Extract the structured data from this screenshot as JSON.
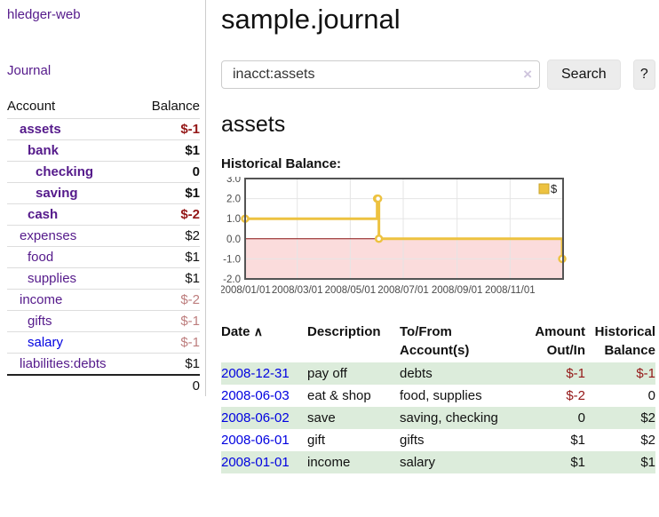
{
  "app": {
    "brand": "hledger-web"
  },
  "nav": {
    "journal": "Journal"
  },
  "sidebar": {
    "col_account": "Account",
    "col_balance": "Balance",
    "rows": [
      {
        "name": "assets",
        "balance": "$-1"
      },
      {
        "name": "bank",
        "balance": "$1"
      },
      {
        "name": "checking",
        "balance": "0"
      },
      {
        "name": "saving",
        "balance": "$1"
      },
      {
        "name": "cash",
        "balance": "$-2"
      },
      {
        "name": "expenses",
        "balance": "$2"
      },
      {
        "name": "food",
        "balance": "$1"
      },
      {
        "name": "supplies",
        "balance": "$1"
      },
      {
        "name": "income",
        "balance": "$-2"
      },
      {
        "name": "gifts",
        "balance": "$-1"
      },
      {
        "name": "salary",
        "balance": "$-1"
      },
      {
        "name": "liabilities:debts",
        "balance": "$1"
      }
    ],
    "total": "0"
  },
  "header": {
    "title": "sample.journal"
  },
  "search": {
    "value": "inacct:assets",
    "clear_icon": "×",
    "button_label": "Search",
    "help_label": "?"
  },
  "account_page": {
    "title": "assets",
    "chart_title": "Historical Balance:"
  },
  "chart_data": {
    "type": "line",
    "title": "Historical Balance:",
    "step": true,
    "series": [
      {
        "name": "$",
        "color": "#edc240",
        "points": [
          {
            "date": "2008/01/01",
            "value": 1
          },
          {
            "date": "2008/06/01",
            "value": 2
          },
          {
            "date": "2008/06/02",
            "value": 2
          },
          {
            "date": "2008/06/03",
            "value": 0
          },
          {
            "date": "2008/12/31",
            "value": -1
          }
        ]
      }
    ],
    "x_ticks": [
      "2008/01/01",
      "2008/03/01",
      "2008/05/01",
      "2008/07/01",
      "2008/09/01",
      "2008/11/01"
    ],
    "y_ticks": [
      "3.0",
      "2.0",
      "1.0",
      "0.0",
      "-1.0",
      "-2.0"
    ],
    "ylim": [
      -2,
      3
    ],
    "grid": true,
    "legend_position": "top-right",
    "colors": {
      "line": "#edc240",
      "marker_fill": "#ffffff",
      "negative_region": "#fbdcdc",
      "zero_line": "#871111",
      "gridline": "#e5e5e5",
      "border": "#545454",
      "tick_text": "#4a4a4a"
    }
  },
  "register": {
    "col_date": "Date",
    "sort_icon": "∧",
    "col_description": "Description",
    "col_accounts": "To/From Account(s)",
    "col_amount": "Amount Out/In",
    "col_balance": "Historical Balance",
    "rows": [
      {
        "date": "2008-12-31",
        "description": "pay off",
        "accounts": "debts",
        "amount": "$-1",
        "balance": "$-1"
      },
      {
        "date": "2008-06-03",
        "description": "eat & shop",
        "accounts": "food, supplies",
        "amount": "$-2",
        "balance": "0"
      },
      {
        "date": "2008-06-02",
        "description": "save",
        "accounts": "saving, checking",
        "amount": "0",
        "balance": "$2"
      },
      {
        "date": "2008-06-01",
        "description": "gift",
        "accounts": "gifts",
        "amount": "$1",
        "balance": "$2"
      },
      {
        "date": "2008-01-01",
        "description": "income",
        "accounts": "salary",
        "amount": "$1",
        "balance": "$1"
      }
    ]
  }
}
